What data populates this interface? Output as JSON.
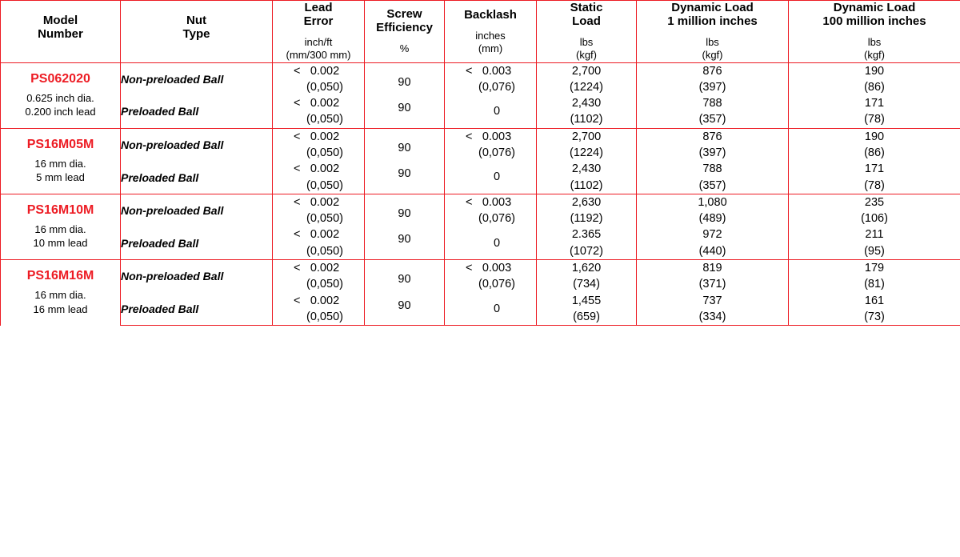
{
  "colors": {
    "border": "#ed1c24",
    "model": "#ed1c24",
    "text": "#000000",
    "bg": "#ffffff"
  },
  "columns": [
    {
      "title": "Model\nNumber",
      "sub": ""
    },
    {
      "title": "Nut\nType",
      "sub": ""
    },
    {
      "title": "Lead\nError",
      "sub": "inch/ft\n(mm/300 mm)"
    },
    {
      "title": "Screw\nEfficiency",
      "sub": "%"
    },
    {
      "title": "Backlash",
      "sub": "inches\n(mm)"
    },
    {
      "title": "Static\nLoad",
      "sub": "lbs\n(kgf)"
    },
    {
      "title": "Dynamic Load\n1 million inches",
      "sub": "lbs\n(kgf)"
    },
    {
      "title": "Dynamic Load\n100 million inches",
      "sub": "lbs\n(kgf)"
    }
  ],
  "rows": [
    {
      "model": "PS062020",
      "desc": "0.625 inch dia.\n0.200 inch lead",
      "nuts": [
        {
          "type": "Non-preloaded Ball",
          "lead": {
            "p": "<",
            "v": "0.002",
            "m": "(0,050)"
          },
          "eff": "90",
          "back": {
            "p": "<",
            "v": "0.003",
            "m": "(0,076)"
          },
          "stat": {
            "v": "2,700",
            "m": "(1224)"
          },
          "d1": {
            "v": "876",
            "m": "(397)"
          },
          "d2": {
            "v": "190",
            "m": "(86)"
          }
        },
        {
          "type": "Preloaded Ball",
          "lead": {
            "p": "<",
            "v": "0.002",
            "m": "(0,050)"
          },
          "eff": "90",
          "back": {
            "p": "",
            "v": "0",
            "m": ""
          },
          "stat": {
            "v": "2,430",
            "m": "(1102)"
          },
          "d1": {
            "v": "788",
            "m": "(357)"
          },
          "d2": {
            "v": "171",
            "m": "(78)"
          }
        }
      ]
    },
    {
      "model": "PS16M05M",
      "desc": "16 mm dia.\n  5 mm lead",
      "nuts": [
        {
          "type": "Non-preloaded Ball",
          "lead": {
            "p": "<",
            "v": "0.002",
            "m": "(0,050)"
          },
          "eff": "90",
          "back": {
            "p": "<",
            "v": "0.003",
            "m": "(0,076)"
          },
          "stat": {
            "v": "2,700",
            "m": "(1224)"
          },
          "d1": {
            "v": "876",
            "m": "(397)"
          },
          "d2": {
            "v": "190",
            "m": "(86)"
          }
        },
        {
          "type": "Preloaded Ball",
          "lead": {
            "p": "<",
            "v": "0.002",
            "m": "(0,050)"
          },
          "eff": "90",
          "back": {
            "p": "",
            "v": "0",
            "m": ""
          },
          "stat": {
            "v": "2,430",
            "m": "(1102)"
          },
          "d1": {
            "v": "788",
            "m": "(357)"
          },
          "d2": {
            "v": "171",
            "m": "(78)"
          }
        }
      ]
    },
    {
      "model": "PS16M10M",
      "desc": "16 mm dia.\n10 mm lead",
      "nuts": [
        {
          "type": "Non-preloaded Ball",
          "lead": {
            "p": "<",
            "v": "0.002",
            "m": "(0,050)"
          },
          "eff": "90",
          "back": {
            "p": "<",
            "v": "0.003",
            "m": "(0,076)"
          },
          "stat": {
            "v": "2,630",
            "m": "(1192)"
          },
          "d1": {
            "v": "1,080",
            "m": "(489)"
          },
          "d2": {
            "v": "235",
            "m": "(106)"
          }
        },
        {
          "type": "Preloaded Ball",
          "lead": {
            "p": "<",
            "v": "0.002",
            "m": "(0,050)"
          },
          "eff": "90",
          "back": {
            "p": "",
            "v": "0",
            "m": ""
          },
          "stat": {
            "v": "2.365",
            "m": "(1072)"
          },
          "d1": {
            "v": "972",
            "m": "(440)"
          },
          "d2": {
            "v": "211",
            "m": "(95)"
          }
        }
      ]
    },
    {
      "model": "PS16M16M",
      "desc": "16 mm dia.\n16 mm lead",
      "nuts": [
        {
          "type": "Non-preloaded Ball",
          "lead": {
            "p": "<",
            "v": "0.002",
            "m": "(0,050)"
          },
          "eff": "90",
          "back": {
            "p": "<",
            "v": "0.003",
            "m": "(0,076)"
          },
          "stat": {
            "v": "1,620",
            "m": "(734)"
          },
          "d1": {
            "v": "819",
            "m": "(371)"
          },
          "d2": {
            "v": "179",
            "m": "(81)"
          }
        },
        {
          "type": "Preloaded Ball",
          "lead": {
            "p": "<",
            "v": "0.002",
            "m": "(0,050)"
          },
          "eff": "90",
          "back": {
            "p": "",
            "v": "0",
            "m": ""
          },
          "stat": {
            "v": "1,455",
            "m": "(659)"
          },
          "d1": {
            "v": "737",
            "m": "(334)"
          },
          "d2": {
            "v": "161",
            "m": "(73)"
          }
        }
      ]
    }
  ]
}
